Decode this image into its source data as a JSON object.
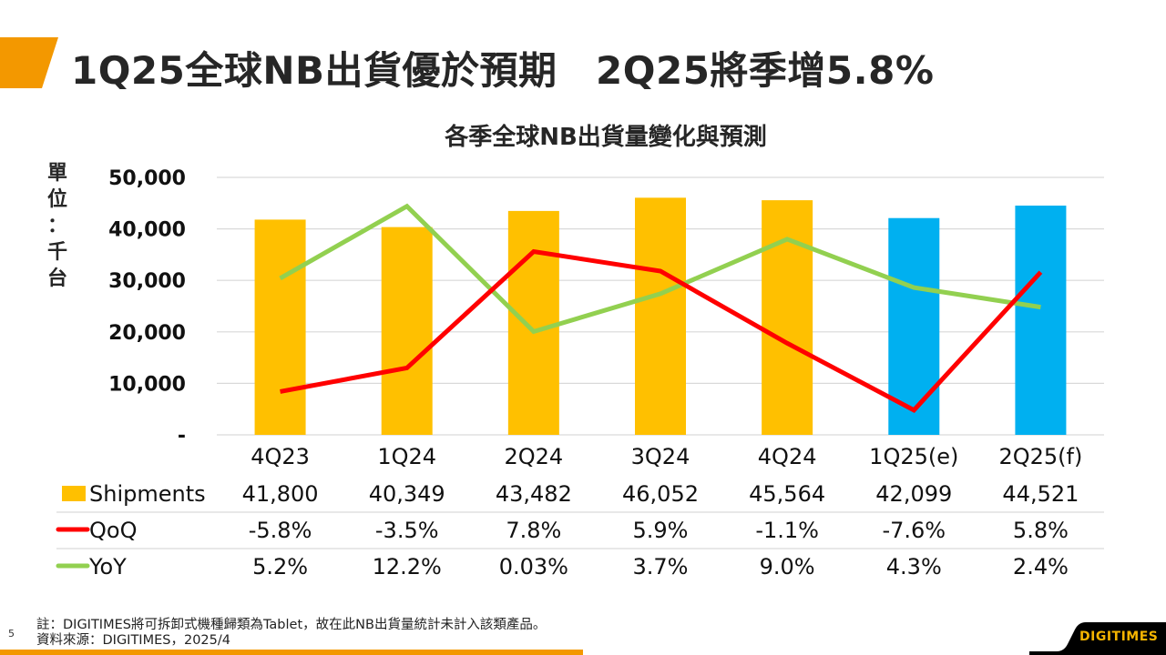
{
  "slide": {
    "title": "1Q25全球NB出貨優於預期　2Q25將季增5.8%",
    "page_number": "5",
    "accent_color": "#f39800"
  },
  "footnote": {
    "note": "註：DIGITIMES將可拆卸式機種歸類為Tablet，故在此NB出貨量統計未計入該類產品。",
    "source": "資料來源：DIGITIMES，2025/4"
  },
  "logo": {
    "text": "DIGITIMES"
  },
  "chart_data": {
    "type": "bar",
    "title": "各季全球NB出貨量變化與預測",
    "ylabel": "單位：千台",
    "ylabel_chars": [
      "單",
      "位",
      "：",
      "千",
      "台"
    ],
    "ylim": [
      0,
      50000
    ],
    "yticks": [
      "-",
      "10,000",
      "20,000",
      "30,000",
      "40,000",
      "50,000"
    ],
    "ytick_values": [
      0,
      10000,
      20000,
      30000,
      40000,
      50000
    ],
    "grid": true,
    "categories": [
      "4Q23",
      "1Q24",
      "2Q24",
      "3Q24",
      "4Q24",
      "1Q25(e)",
      "2Q25(f)"
    ],
    "bar_colors": [
      "#ffc000",
      "#ffc000",
      "#ffc000",
      "#ffc000",
      "#ffc000",
      "#00b0f0",
      "#00b0f0"
    ],
    "series": [
      {
        "name": "Shipments",
        "type": "bar",
        "color": "#ffc000",
        "values": [
          41800,
          40349,
          43482,
          46052,
          45564,
          42099,
          44521
        ],
        "labels": [
          "41,800",
          "40,349",
          "43,482",
          "46,052",
          "45,564",
          "42,099",
          "44,521"
        ]
      },
      {
        "name": "QoQ",
        "type": "line",
        "color": "#ff0000",
        "axis": "secondary",
        "values": [
          -5.8,
          -3.5,
          7.8,
          5.9,
          -1.1,
          -7.6,
          5.8
        ],
        "labels": [
          "-5.8%",
          "-3.5%",
          "7.8%",
          "5.9%",
          "-1.1%",
          "-7.6%",
          "5.8%"
        ]
      },
      {
        "name": "YoY",
        "type": "line",
        "color": "#92d050",
        "axis": "secondary",
        "values": [
          5.2,
          12.2,
          0.03,
          3.7,
          9.0,
          4.3,
          2.4
        ],
        "labels": [
          "5.2%",
          "12.2%",
          "0.03%",
          "3.7%",
          "9.0%",
          "4.3%",
          "2.4%"
        ]
      }
    ],
    "secondary_ylim": [
      -10,
      15
    ],
    "data_table": true
  }
}
